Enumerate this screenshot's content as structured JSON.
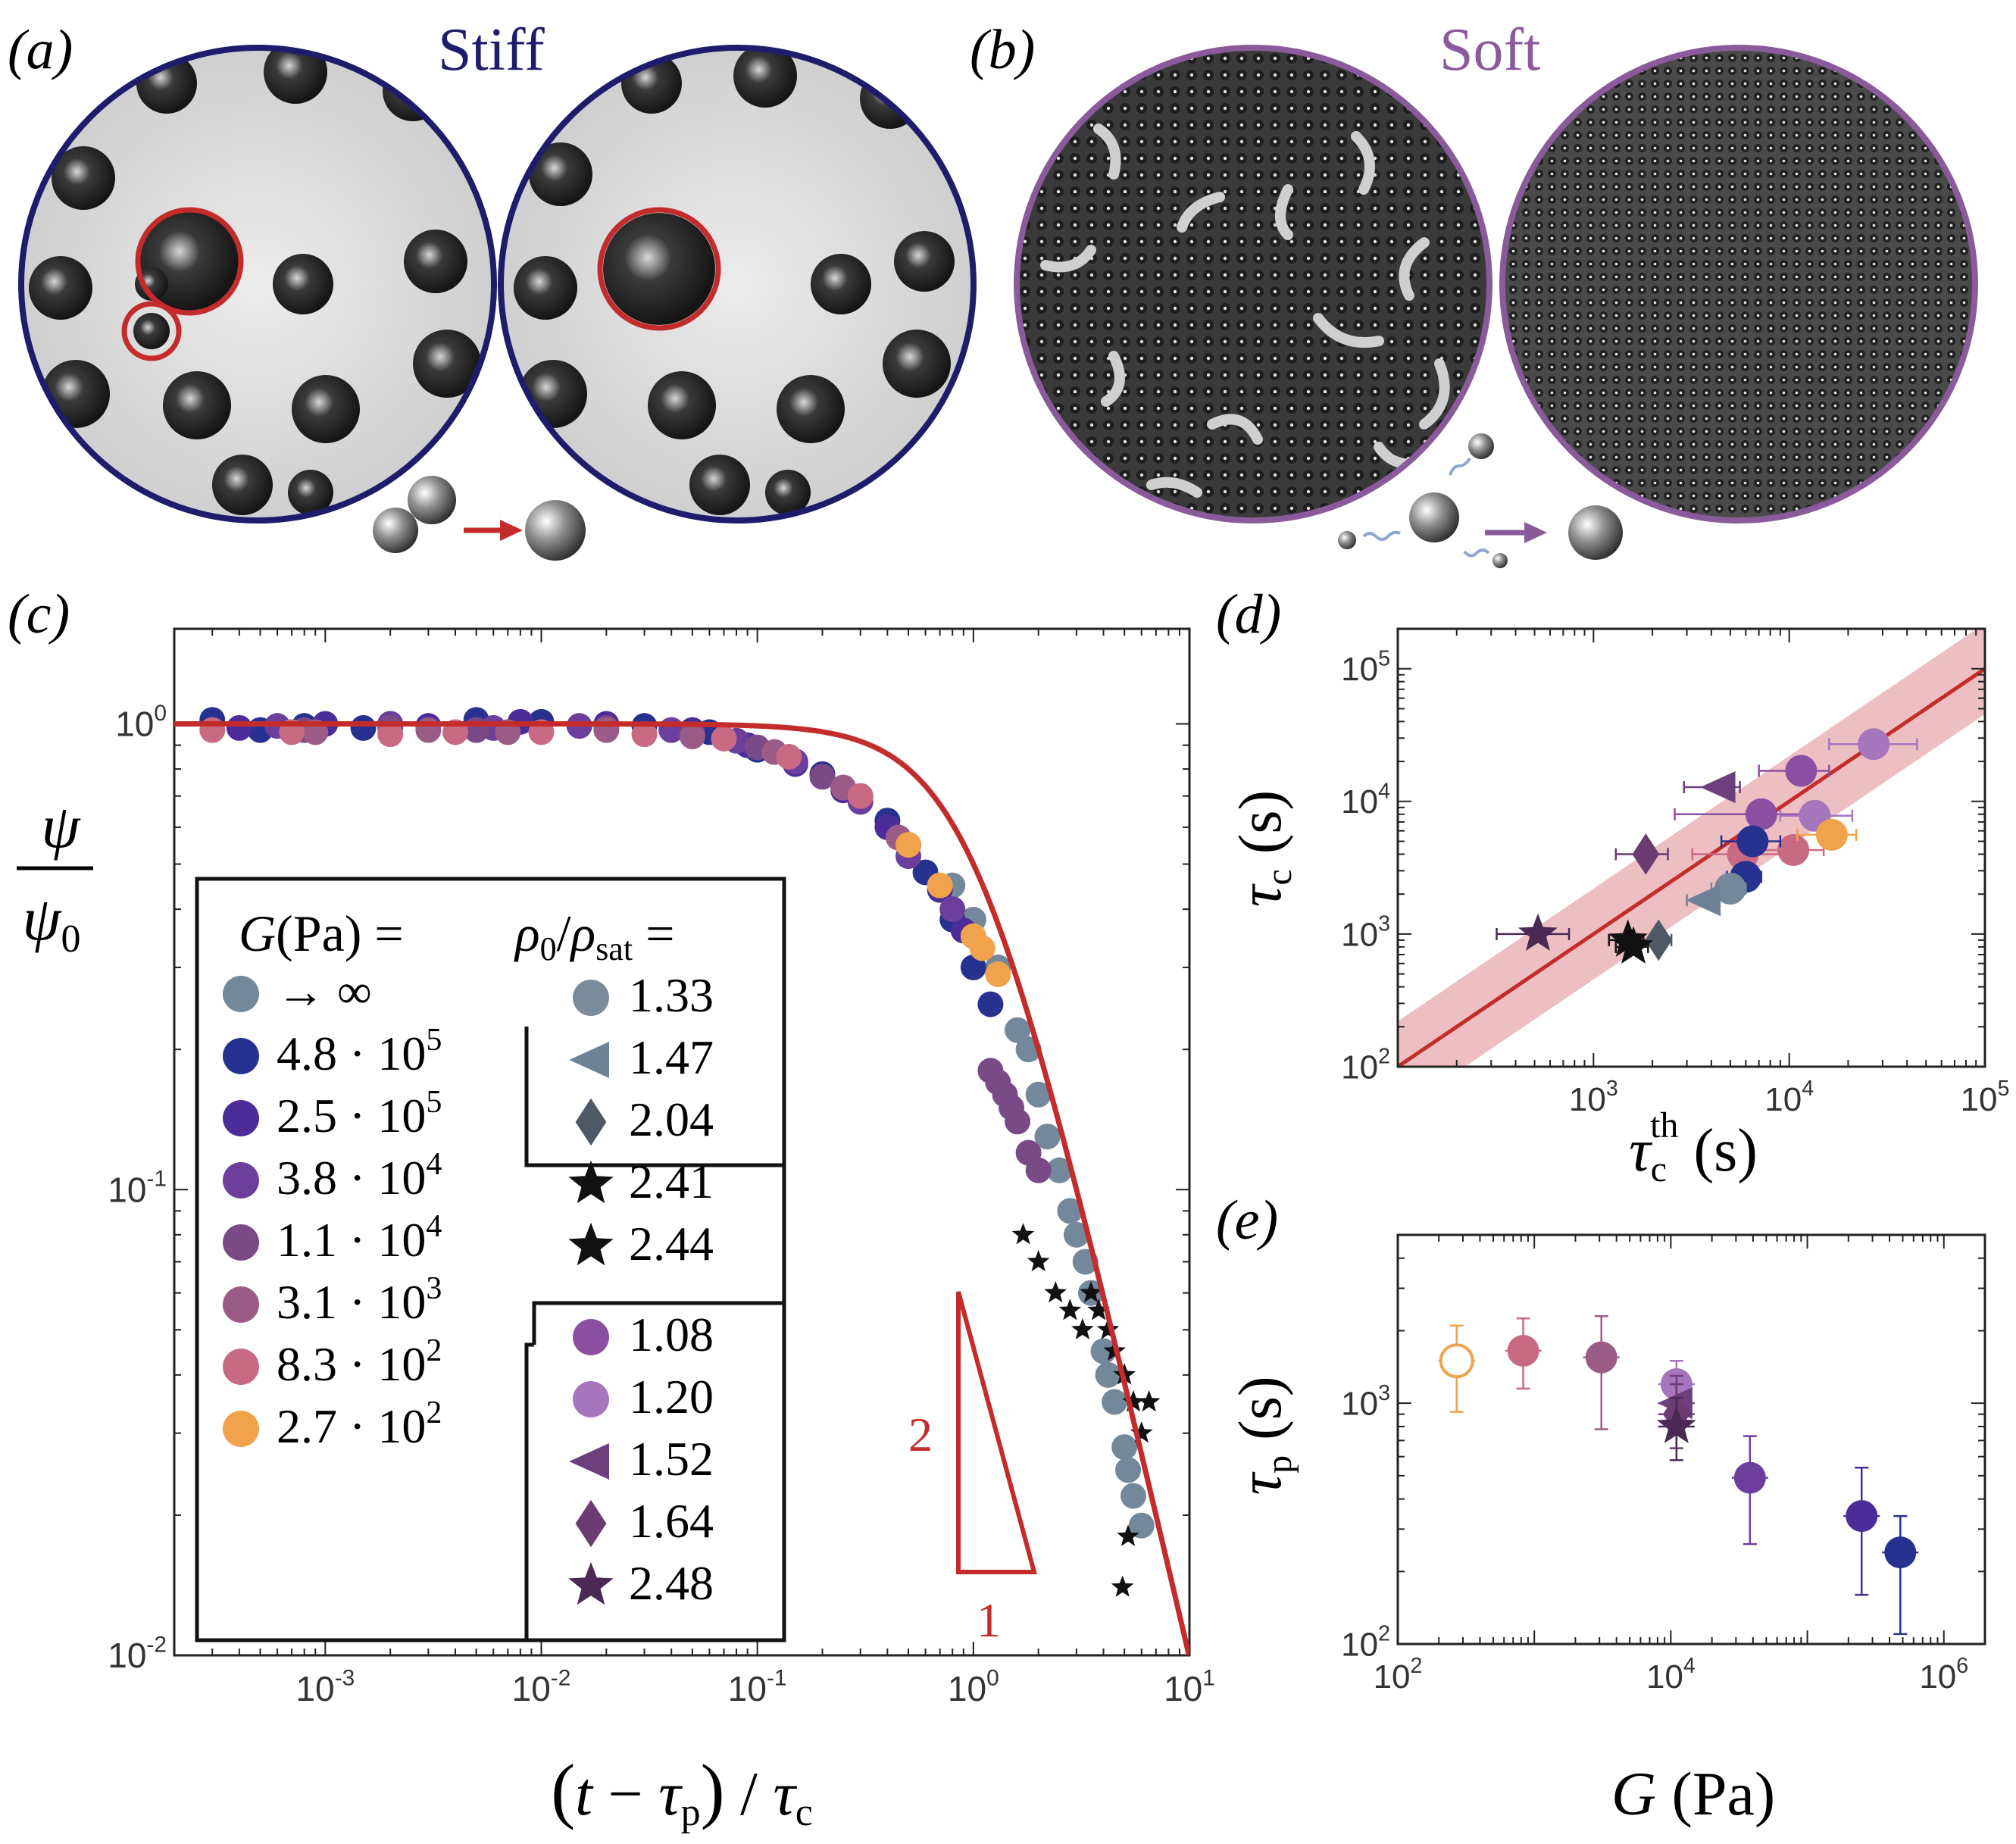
{
  "colors": {
    "stiff": "#1f1d6b",
    "soft": "#8a5a9a",
    "fit": "#c42b2b",
    "band": "#e8a9ad",
    "g_inf": "#74889b",
    "g_48e5": "#27318f",
    "g_25e5": "#4b2c98",
    "g_38e4": "#6c3f9c",
    "g_11e4": "#7a4a86",
    "g_31e3": "#9a5b87",
    "g_83e2": "#c96a84",
    "g_27e2": "#f0a34c",
    "rho_108": "#8b4fa1",
    "rho_120": "#a676bd",
    "rho_152": "#6d3f7d",
    "rho_164": "#6b3b71",
    "rho_248": "#4a2a55",
    "rho_133": "#7a8b9b",
    "rho_147": "#6e8296",
    "rho_204": "#4d5a66",
    "rho_241": "#111111",
    "rho_244": "#111111"
  },
  "panels": {
    "a": {
      "label": "(a)",
      "title": "Stiff"
    },
    "b": {
      "label": "(b)",
      "title": "Soft"
    },
    "c": {
      "label": "(c)"
    },
    "d": {
      "label": "(d)"
    },
    "e": {
      "label": "(e)"
    }
  },
  "chart_data": [
    {
      "id": "c",
      "type": "scatter",
      "xscale": "log",
      "yscale": "log",
      "xlim": [
        0.0002,
        10
      ],
      "ylim": [
        0.01,
        1.6
      ],
      "xlabel": "(t − τp)/τc",
      "ylabel": "ψ/ψ0",
      "xticks": [
        {
          "label": "10",
          "exp": "-3",
          "v": 0.001
        },
        {
          "label": "10",
          "exp": "-2",
          "v": 0.01
        },
        {
          "label": "10",
          "exp": "-1",
          "v": 0.1
        },
        {
          "label": "10",
          "exp": "0",
          "v": 1
        },
        {
          "label": "10",
          "exp": "1",
          "v": 10
        }
      ],
      "yticks": [
        {
          "label": "10",
          "exp": "-2",
          "v": 0.01
        },
        {
          "label": "10",
          "exp": "-1",
          "v": 0.1
        },
        {
          "label": "10",
          "exp": "0",
          "v": 1
        }
      ],
      "fit": {
        "name": "fit",
        "model": "1/(1+x^2)"
      },
      "slope_triangle": {
        "rise": "2",
        "run": "1"
      },
      "series": [
        {
          "name": "G → ∞",
          "color": "g_inf",
          "points": [
            [
              0.5,
              0.55
            ],
            [
              0.8,
              0.45
            ],
            [
              1.0,
              0.38
            ],
            [
              1.3,
              0.3
            ],
            [
              1.6,
              0.22
            ],
            [
              2.0,
              0.16
            ],
            [
              2.5,
              0.11
            ],
            [
              3.0,
              0.08
            ],
            [
              3.5,
              0.06
            ],
            [
              4.0,
              0.045
            ],
            [
              4.5,
              0.035
            ],
            [
              5.0,
              0.028
            ],
            [
              5.5,
              0.022
            ],
            [
              6.0,
              0.019
            ],
            [
              1.8,
              0.2
            ],
            [
              2.2,
              0.13
            ],
            [
              2.8,
              0.09
            ],
            [
              3.3,
              0.07
            ],
            [
              4.2,
              0.04
            ],
            [
              5.2,
              0.025
            ]
          ]
        },
        {
          "name": "4.8e5",
          "color": "g_48e5",
          "points": [
            [
              0.0003,
              1.02
            ],
            [
              0.0008,
              0.99
            ],
            [
              0.002,
              1.0
            ],
            [
              0.005,
              1.02
            ],
            [
              0.01,
              1.01
            ],
            [
              0.03,
              0.99
            ],
            [
              0.06,
              0.96
            ],
            [
              0.1,
              0.88
            ],
            [
              0.2,
              0.78
            ],
            [
              0.4,
              0.62
            ],
            [
              0.6,
              0.48
            ],
            [
              0.8,
              0.38
            ],
            [
              1.0,
              0.3
            ],
            [
              1.2,
              0.25
            ],
            [
              0.3,
              0.7
            ],
            [
              0.5,
              0.55
            ],
            [
              0.0005,
              0.97
            ],
            [
              0.0015,
              0.98
            ]
          ]
        },
        {
          "name": "2.5e5",
          "color": "g_25e5",
          "points": [
            [
              0.0004,
              0.98
            ],
            [
              0.001,
              1.0
            ],
            [
              0.003,
              0.99
            ],
            [
              0.008,
              1.01
            ],
            [
              0.02,
              1.0
            ],
            [
              0.05,
              0.97
            ],
            [
              0.09,
              0.9
            ],
            [
              0.15,
              0.82
            ],
            [
              0.25,
              0.72
            ],
            [
              0.4,
              0.6
            ],
            [
              0.7,
              0.44
            ],
            [
              0.9,
              0.36
            ]
          ]
        },
        {
          "name": "3.8e4",
          "color": "g_38e4",
          "points": [
            [
              0.0006,
              0.99
            ],
            [
              0.002,
              1.0
            ],
            [
              0.006,
              0.98
            ],
            [
              0.015,
              0.99
            ],
            [
              0.04,
              0.97
            ],
            [
              0.08,
              0.92
            ],
            [
              0.15,
              0.83
            ],
            [
              0.3,
              0.68
            ],
            [
              0.5,
              0.52
            ],
            [
              0.8,
              0.4
            ]
          ]
        },
        {
          "name": "1.1e4",
          "color": "g_11e4",
          "points": [
            [
              0.0008,
              0.97
            ],
            [
              0.002,
              0.98
            ],
            [
              0.005,
              0.97
            ],
            [
              0.02,
              0.98
            ],
            [
              0.05,
              0.95
            ],
            [
              0.1,
              0.89
            ],
            [
              0.2,
              0.77
            ],
            [
              1.2,
              0.18
            ],
            [
              1.4,
              0.16
            ],
            [
              1.6,
              0.14
            ],
            [
              1.8,
              0.12
            ],
            [
              2.0,
              0.11
            ],
            [
              1.3,
              0.17
            ],
            [
              1.5,
              0.15
            ]
          ]
        },
        {
          "name": "3.1e3",
          "color": "g_31e3",
          "points": [
            [
              0.0009,
              0.96
            ],
            [
              0.003,
              0.97
            ],
            [
              0.007,
              0.96
            ],
            [
              0.02,
              0.97
            ],
            [
              0.05,
              0.94
            ],
            [
              0.12,
              0.87
            ],
            [
              0.25,
              0.73
            ],
            [
              0.45,
              0.57
            ]
          ]
        },
        {
          "name": "8.3e2",
          "color": "g_83e2",
          "points": [
            [
              0.0003,
              0.97
            ],
            [
              0.0007,
              0.96
            ],
            [
              0.002,
              0.95
            ],
            [
              0.004,
              0.96
            ],
            [
              0.01,
              0.96
            ],
            [
              0.03,
              0.95
            ],
            [
              0.07,
              0.93
            ],
            [
              0.14,
              0.85
            ],
            [
              0.3,
              0.7
            ]
          ]
        },
        {
          "name": "2.7e2",
          "color": "g_27e2",
          "points": [
            [
              0.5,
              0.55
            ],
            [
              0.7,
              0.45
            ],
            [
              1.0,
              0.35
            ],
            [
              1.3,
              0.29
            ],
            [
              1.1,
              0.33
            ]
          ]
        },
        {
          "name": "2.41/2.44",
          "color": "rho_241",
          "points": [
            [
              1.7,
              0.08
            ],
            [
              2.0,
              0.07
            ],
            [
              2.4,
              0.06
            ],
            [
              2.8,
              0.055
            ],
            [
              3.2,
              0.05
            ],
            [
              3.8,
              0.055
            ],
            [
              4.5,
              0.045
            ],
            [
              5.0,
              0.04
            ],
            [
              5.5,
              0.035
            ],
            [
              6.0,
              0.03
            ],
            [
              6.5,
              0.035
            ],
            [
              5.2,
              0.018
            ],
            [
              4.9,
              0.014
            ],
            [
              3.5,
              0.06
            ],
            [
              4.2,
              0.05
            ]
          ]
        }
      ],
      "legend": {
        "g_header": "G(Pa) =",
        "rho_header": "ρ0/ρsat =",
        "g_items": [
          {
            "label": "→ ∞",
            "mant": "",
            "exp": "",
            "color": "g_inf"
          },
          {
            "label": "4.8 · 10",
            "exp": "5",
            "color": "g_48e5"
          },
          {
            "label": "2.5 · 10",
            "exp": "5",
            "color": "g_25e5"
          },
          {
            "label": "3.8 · 10",
            "exp": "4",
            "color": "g_38e4"
          },
          {
            "label": "1.1 · 10",
            "exp": "4",
            "color": "g_11e4"
          },
          {
            "label": "3.1 · 10",
            "exp": "3",
            "color": "g_31e3"
          },
          {
            "label": "8.3 · 10",
            "exp": "2",
            "color": "g_83e2"
          },
          {
            "label": "2.7 · 10",
            "exp": "2",
            "color": "g_27e2"
          }
        ],
        "rho_stiff": [
          {
            "label": "1.33",
            "marker": "circle",
            "color": "rho_133"
          },
          {
            "label": "1.47",
            "marker": "triangle-left",
            "color": "rho_147"
          },
          {
            "label": "2.04",
            "marker": "diamond",
            "color": "rho_204"
          },
          {
            "label": "2.41",
            "marker": "star",
            "color": "rho_241"
          },
          {
            "label": "2.44",
            "marker": "star",
            "color": "rho_244"
          }
        ],
        "rho_soft": [
          {
            "label": "1.08",
            "marker": "circle",
            "color": "rho_108"
          },
          {
            "label": "1.20",
            "marker": "circle",
            "color": "rho_120"
          },
          {
            "label": "1.52",
            "marker": "triangle-left",
            "color": "rho_152"
          },
          {
            "label": "1.64",
            "marker": "diamond",
            "color": "rho_164"
          },
          {
            "label": "2.48",
            "marker": "star",
            "color": "rho_248"
          }
        ]
      }
    },
    {
      "id": "d",
      "type": "scatter",
      "xscale": "log",
      "yscale": "log",
      "xlim": [
        100,
        100000
      ],
      "ylim": [
        100,
        200000
      ],
      "xlabel": "τc^th (s)",
      "ylabel": "τc (s)",
      "xticks": [
        {
          "label": "10",
          "exp": "3",
          "v": 1000
        },
        {
          "label": "10",
          "exp": "4",
          "v": 10000
        },
        {
          "label": "10",
          "exp": "5",
          "v": 100000
        }
      ],
      "yticks": [
        {
          "label": "10",
          "exp": "2",
          "v": 100
        },
        {
          "label": "10",
          "exp": "3",
          "v": 1000
        },
        {
          "label": "10",
          "exp": "4",
          "v": 10000
        },
        {
          "label": "10",
          "exp": "5",
          "v": 100000
        }
      ],
      "fit_line": {
        "slope": 1,
        "band_factor": 2.2
      },
      "points": [
        {
          "x": 27000,
          "y": 27000,
          "xerr": [
            16000,
            45000
          ],
          "marker": "circle",
          "color": "rho_120"
        },
        {
          "x": 11500,
          "y": 17000,
          "xerr": [
            7000,
            16000
          ],
          "marker": "circle",
          "color": "rho_108"
        },
        {
          "x": 7200,
          "y": 8000,
          "xerr": [
            2600,
            14000
          ],
          "marker": "circle",
          "color": "rho_108"
        },
        {
          "x": 13500,
          "y": 7800,
          "xerr": [
            9000,
            21000
          ],
          "marker": "circle",
          "color": "rho_120"
        },
        {
          "x": 4400,
          "y": 12800,
          "xerr": [
            2900,
            5600
          ],
          "marker": "triangle-left",
          "color": "rho_152"
        },
        {
          "x": 1850,
          "y": 4000,
          "xerr": [
            1300,
            2400
          ],
          "marker": "diamond",
          "color": "rho_164"
        },
        {
          "x": 5800,
          "y": 4000,
          "xerr": [
            3200,
            10000
          ],
          "marker": "circle",
          "color": "g_83e2"
        },
        {
          "x": 10500,
          "y": 4300,
          "xerr": [
            7000,
            15000
          ],
          "marker": "circle",
          "color": "g_83e2"
        },
        {
          "x": 16500,
          "y": 5600,
          "xerr": [
            11000,
            22000
          ],
          "marker": "circle",
          "color": "g_27e2"
        },
        {
          "x": 6500,
          "y": 5000,
          "xerr": [
            4500,
            9000
          ],
          "marker": "circle",
          "color": "g_48e5"
        },
        {
          "x": 6000,
          "y": 2700,
          "xerr": [
            4800,
            7200
          ],
          "marker": "circle",
          "color": "g_48e5"
        },
        {
          "x": 5000,
          "y": 2200,
          "xerr": [
            4000,
            6000
          ],
          "marker": "circle",
          "color": "g_inf"
        },
        {
          "x": 3700,
          "y": 1800,
          "xerr": [
            3000,
            4400
          ],
          "marker": "triangle-left",
          "color": "rho_147"
        },
        {
          "x": 2150,
          "y": 900,
          "xerr": [
            1700,
            2500
          ],
          "marker": "diamond",
          "color": "rho_204"
        },
        {
          "x": 1500,
          "y": 900,
          "xerr": [
            1200,
            1800
          ],
          "marker": "star",
          "color": "rho_241"
        },
        {
          "x": 1600,
          "y": 800,
          "xerr": [
            1300,
            1900
          ],
          "marker": "star",
          "color": "rho_244"
        },
        {
          "x": 520,
          "y": 1000,
          "xerr": [
            320,
            750
          ],
          "marker": "star",
          "color": "rho_248"
        }
      ]
    },
    {
      "id": "e",
      "type": "scatter",
      "xscale": "log",
      "yscale": "log",
      "xlim": [
        100,
        2000000
      ],
      "ylim": [
        100,
        5000
      ],
      "xlabel": "G (Pa)",
      "ylabel": "τp (s)",
      "xticks": [
        {
          "label": "10",
          "exp": "2",
          "v": 100
        },
        {
          "label": "10",
          "exp": "4",
          "v": 10000
        },
        {
          "label": "10",
          "exp": "6",
          "v": 1000000
        }
      ],
      "yticks": [
        {
          "label": "10",
          "exp": "2",
          "v": 100
        },
        {
          "label": "10",
          "exp": "3",
          "v": 1000
        }
      ],
      "points": [
        {
          "x": 270,
          "y": 1500,
          "yerr": [
            920,
            2100
          ],
          "marker": "circle-open",
          "color": "g_27e2"
        },
        {
          "x": 830,
          "y": 1650,
          "yerr": [
            1150,
            2250
          ],
          "marker": "circle",
          "color": "g_83e2"
        },
        {
          "x": 3100,
          "y": 1550,
          "yerr": [
            780,
            2300
          ],
          "marker": "circle",
          "color": "g_31e3"
        },
        {
          "x": 11000,
          "y": 1200,
          "yerr": [
            900,
            1500
          ],
          "marker": "circle",
          "color": "rho_120"
        },
        {
          "x": 11000,
          "y": 1000,
          "yerr": [
            750,
            1300
          ],
          "marker": "triangle-left",
          "color": "rho_152"
        },
        {
          "x": 11000,
          "y": 900,
          "yerr": [
            650,
            1200
          ],
          "marker": "diamond",
          "color": "rho_164"
        },
        {
          "x": 11000,
          "y": 800,
          "yerr": [
            580,
            1050
          ],
          "marker": "star",
          "color": "rho_248"
        },
        {
          "x": 38000,
          "y": 490,
          "yerr": [
            260,
            730
          ],
          "marker": "circle",
          "color": "g_38e4"
        },
        {
          "x": 250000,
          "y": 340,
          "yerr": [
            160,
            540
          ],
          "marker": "circle",
          "color": "g_25e5"
        },
        {
          "x": 480000,
          "y": 240,
          "yerr": [
            110,
            340
          ],
          "marker": "circle",
          "color": "g_48e5"
        }
      ]
    }
  ]
}
